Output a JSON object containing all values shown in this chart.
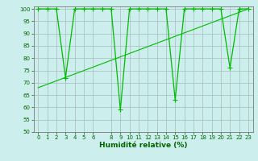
{
  "x": [
    0,
    1,
    2,
    3,
    4,
    5,
    6,
    7,
    8,
    9,
    10,
    11,
    12,
    13,
    14,
    15,
    16,
    17,
    18,
    19,
    20,
    21,
    22,
    23
  ],
  "y": [
    100,
    100,
    100,
    72,
    100,
    100,
    100,
    100,
    100,
    59,
    100,
    100,
    100,
    100,
    100,
    63,
    100,
    100,
    100,
    100,
    100,
    76,
    100,
    100
  ],
  "trend_x": [
    0,
    23
  ],
  "trend_y": [
    68,
    100
  ],
  "line_color": "#00bb00",
  "marker": "+",
  "marker_size": 4,
  "marker_lw": 0.8,
  "xlabel": "Humidité relative (%)",
  "xlim": [
    -0.5,
    23.5
  ],
  "ylim": [
    50,
    101
  ],
  "yticks": [
    50,
    55,
    60,
    65,
    70,
    75,
    80,
    85,
    90,
    95,
    100
  ],
  "xticks": [
    0,
    1,
    2,
    3,
    4,
    5,
    6,
    8,
    9,
    10,
    11,
    12,
    13,
    14,
    15,
    16,
    17,
    18,
    19,
    20,
    21,
    22,
    23
  ],
  "xticklabels": [
    "0",
    "1",
    "2",
    "3",
    "4",
    "5",
    "6",
    "8",
    "9",
    "10",
    "11",
    "12",
    "13",
    "14",
    "15",
    "16",
    "17",
    "18",
    "19",
    "20",
    "21",
    "22",
    "23"
  ],
  "bg_color": "#cceeed",
  "grid_color": "#aabbbb",
  "text_color": "#006600",
  "tick_font_size": 5.0,
  "xlabel_font_size": 6.5,
  "line_width": 0.9,
  "trend_lw": 0.8
}
